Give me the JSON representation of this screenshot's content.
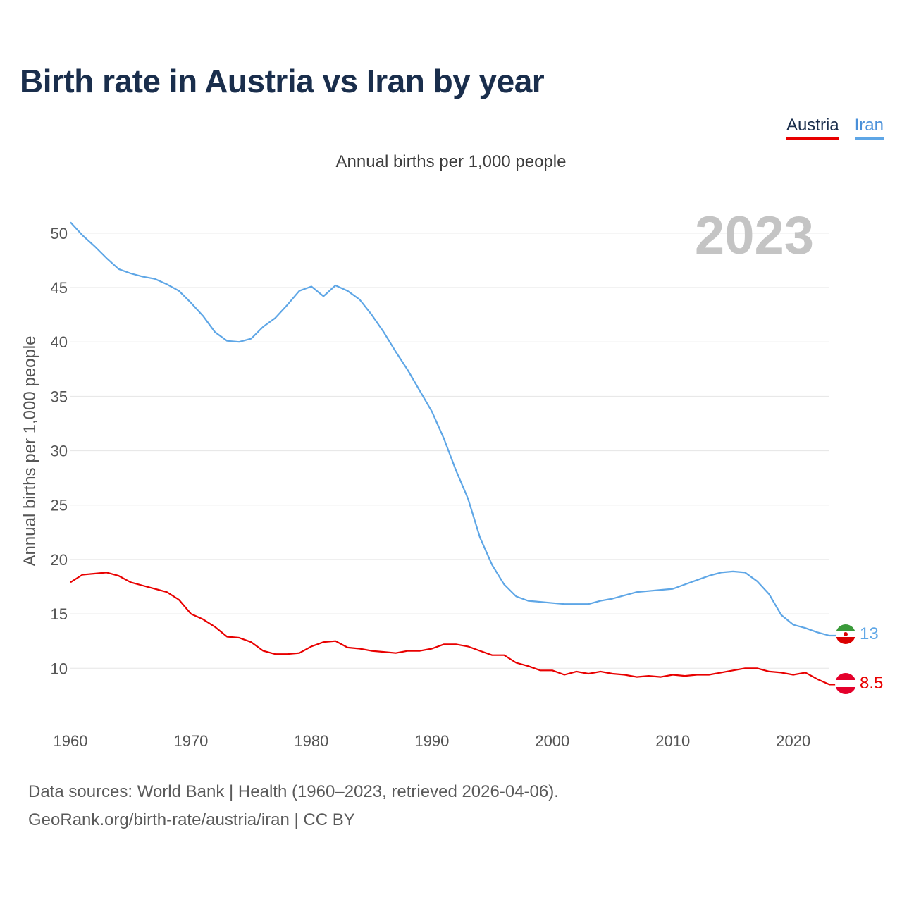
{
  "title": "Birth rate in Austria vs Iran by year",
  "subtitle": "Annual births per 1,000 people",
  "legend": [
    {
      "label": "Austria",
      "color": "#e80000"
    },
    {
      "label": "Iran",
      "color": "#5ea6e6"
    }
  ],
  "year_watermark": "2023",
  "footer": {
    "line1": "Data sources: World Bank | Health (1960–2023, retrieved 2026-04-06).",
    "line2": "GeoRank.org/birth-rate/austria/iran | CC BY"
  },
  "chart_data": {
    "type": "line",
    "title": "Birth rate in Austria vs Iran by year",
    "xlabel": "",
    "ylabel": "Annual births per 1,000 people",
    "xlim": [
      1960,
      2023
    ],
    "ylim": [
      6,
      52
    ],
    "grid": true,
    "legend_position": "top-right",
    "x_ticks": [
      1960,
      1970,
      1980,
      1990,
      2000,
      2010,
      2020
    ],
    "y_ticks": [
      10,
      15,
      20,
      25,
      30,
      35,
      40,
      45,
      50
    ],
    "x": [
      1960,
      1961,
      1962,
      1963,
      1964,
      1965,
      1966,
      1967,
      1968,
      1969,
      1970,
      1971,
      1972,
      1973,
      1974,
      1975,
      1976,
      1977,
      1978,
      1979,
      1980,
      1981,
      1982,
      1983,
      1984,
      1985,
      1986,
      1987,
      1988,
      1989,
      1990,
      1991,
      1992,
      1993,
      1994,
      1995,
      1996,
      1997,
      1998,
      1999,
      2000,
      2001,
      2002,
      2003,
      2004,
      2005,
      2006,
      2007,
      2008,
      2009,
      2010,
      2011,
      2012,
      2013,
      2014,
      2015,
      2016,
      2017,
      2018,
      2019,
      2020,
      2021,
      2022,
      2023
    ],
    "series": [
      {
        "name": "Austria",
        "color": "#e80000",
        "end_label": "8.5",
        "values": [
          17.9,
          18.6,
          18.7,
          18.8,
          18.5,
          17.9,
          17.6,
          17.3,
          17.0,
          16.3,
          15.0,
          14.5,
          13.8,
          12.9,
          12.8,
          12.4,
          11.6,
          11.3,
          11.3,
          11.4,
          12.0,
          12.4,
          12.5,
          11.9,
          11.8,
          11.6,
          11.5,
          11.4,
          11.6,
          11.6,
          11.8,
          12.2,
          12.2,
          12.0,
          11.6,
          11.2,
          11.2,
          10.5,
          10.2,
          9.8,
          9.8,
          9.4,
          9.7,
          9.5,
          9.7,
          9.5,
          9.4,
          9.2,
          9.3,
          9.2,
          9.4,
          9.3,
          9.4,
          9.4,
          9.6,
          9.8,
          10.0,
          10.0,
          9.7,
          9.6,
          9.4,
          9.6,
          9.0,
          8.5
        ]
      },
      {
        "name": "Iran",
        "color": "#5ea6e6",
        "end_label": "13",
        "values": [
          51.0,
          49.8,
          48.8,
          47.7,
          46.7,
          46.3,
          46.0,
          45.8,
          45.3,
          44.7,
          43.6,
          42.4,
          40.9,
          40.1,
          40.0,
          40.3,
          41.4,
          42.2,
          43.4,
          44.7,
          45.1,
          44.2,
          45.2,
          44.7,
          43.9,
          42.5,
          40.9,
          39.1,
          37.4,
          35.5,
          33.6,
          31.1,
          28.2,
          25.6,
          22.0,
          19.5,
          17.7,
          16.6,
          16.2,
          16.1,
          16.0,
          15.9,
          15.9,
          15.9,
          16.2,
          16.4,
          16.7,
          17.0,
          17.1,
          17.2,
          17.3,
          17.7,
          18.1,
          18.5,
          18.8,
          18.9,
          18.8,
          18.0,
          16.8,
          14.9,
          14.0,
          13.7,
          13.3,
          13.0
        ]
      }
    ]
  }
}
